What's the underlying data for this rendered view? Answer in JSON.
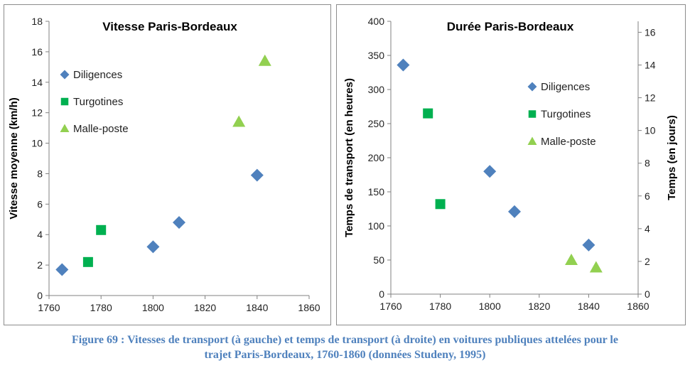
{
  "colors": {
    "diligences": "#4f81bd",
    "turgotines": "#00b050",
    "malle_poste": "#92d050",
    "axis": "#808080",
    "caption": "#4f81bd"
  },
  "chart_data": [
    {
      "type": "scatter",
      "title": "Vitesse Paris-Bordeaux",
      "xlabel": "",
      "ylabel": "Vitesse moyenne (km/h)",
      "xlim": [
        1760,
        1860
      ],
      "ylim": [
        0,
        18
      ],
      "xticks": [
        "1760",
        "1780",
        "1800",
        "1820",
        "1840",
        "1860"
      ],
      "yticks": [
        "0",
        "2",
        "4",
        "6",
        "8",
        "10",
        "12",
        "14",
        "16",
        "18"
      ],
      "legend": [
        "Diligences",
        "Turgotines",
        "Malle-poste"
      ],
      "series": [
        {
          "name": "Diligences",
          "marker": "diamond",
          "x": [
            1765,
            1800,
            1810,
            1840
          ],
          "y": [
            1.7,
            3.2,
            4.8,
            7.9
          ]
        },
        {
          "name": "Turgotines",
          "marker": "square",
          "x": [
            1775,
            1780
          ],
          "y": [
            2.2,
            4.3
          ]
        },
        {
          "name": "Malle-poste",
          "marker": "triangle",
          "x": [
            1833,
            1843
          ],
          "y": [
            11.4,
            15.4
          ]
        }
      ]
    },
    {
      "type": "scatter",
      "title": "Durée Paris-Bordeaux",
      "xlabel": "",
      "ylabel": "Temps de transport (en heures)",
      "y2label": "Temps (en jours)",
      "xlim": [
        1760,
        1860
      ],
      "ylim": [
        0,
        400
      ],
      "y2lim": [
        0,
        16.67
      ],
      "xticks": [
        "1760",
        "1780",
        "1800",
        "1820",
        "1840",
        "1860"
      ],
      "yticks": [
        "0",
        "50",
        "100",
        "150",
        "200",
        "250",
        "300",
        "350",
        "400"
      ],
      "y2ticks": [
        "0",
        "2",
        "4",
        "6",
        "8",
        "10",
        "12",
        "14",
        "16"
      ],
      "legend": [
        "Diligences",
        "Turgotines",
        "Malle-poste"
      ],
      "series": [
        {
          "name": "Diligences",
          "marker": "diamond",
          "x": [
            1765,
            1800,
            1810,
            1840
          ],
          "y": [
            336,
            180,
            121,
            72
          ]
        },
        {
          "name": "Turgotines",
          "marker": "square",
          "x": [
            1775,
            1780
          ],
          "y": [
            265,
            132
          ]
        },
        {
          "name": "Malle-poste",
          "marker": "triangle",
          "x": [
            1833,
            1843
          ],
          "y": [
            50,
            39
          ]
        }
      ]
    }
  ],
  "caption": {
    "line1": "Figure 69 : Vitesses de transport (à gauche) et temps de transport (à droite) en voitures publiques attelées pour le",
    "line2": "trajet Paris-Bordeaux, 1760-1860 (données Studeny, 1995)"
  }
}
